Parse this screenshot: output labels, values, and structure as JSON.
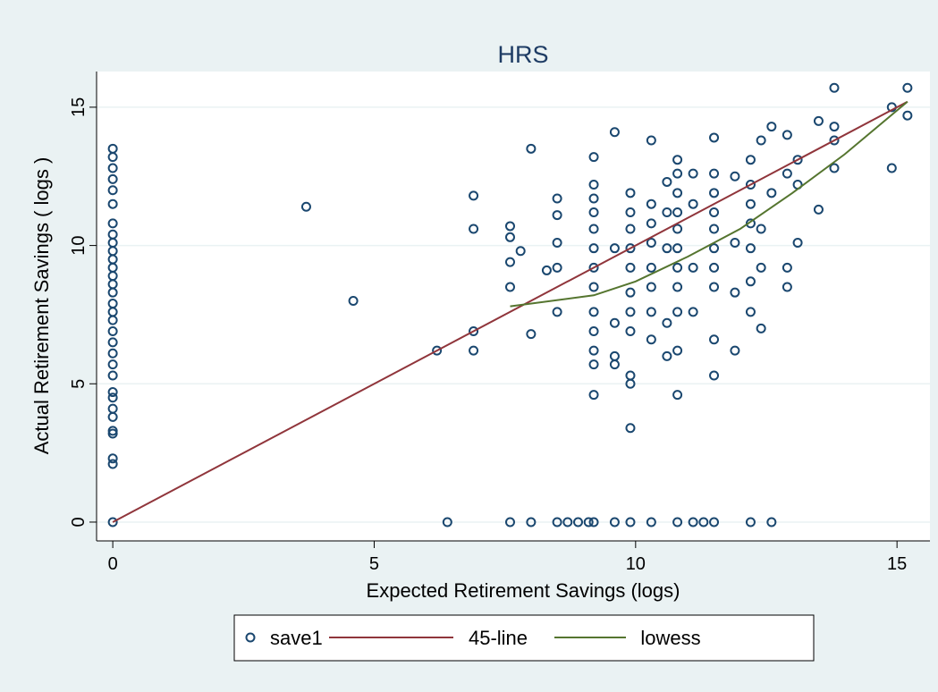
{
  "chart_data": {
    "type": "scatter",
    "title": "HRS",
    "x_label": "Expected Retirement Savings (logs)",
    "y_label": "Actual Retirement Savings ( logs )",
    "xlim": [
      -0.31,
      15.63
    ],
    "ylim": [
      -0.68,
      16.29
    ],
    "xticks": [
      0,
      5,
      10,
      15
    ],
    "yticks": [
      0,
      5,
      10,
      15
    ],
    "grid": true,
    "legend": "bottom",
    "series": [
      {
        "name": "save1",
        "mode": "markers",
        "color": "#1a476f",
        "x": [
          0,
          0,
          0,
          0,
          0,
          0,
          0,
          0,
          0,
          0,
          0,
          0,
          0,
          0,
          0,
          0,
          0,
          0,
          0,
          0,
          0,
          0,
          0,
          0,
          0,
          0,
          0,
          0,
          0,
          0,
          0,
          0,
          3.7,
          4.6,
          6.2,
          6.4,
          6.9,
          6.9,
          6.9,
          6.9,
          7.6,
          7.6,
          7.6,
          7.6,
          7.6,
          7.8,
          8,
          8,
          8,
          8.3,
          8.5,
          8.5,
          8.5,
          8.5,
          8.5,
          8.5,
          8.7,
          8.9,
          9.1,
          9.2,
          9.2,
          9.2,
          9.2,
          9.2,
          9.2,
          9.2,
          9.2,
          9.2,
          9.2,
          9.2,
          9.2,
          9.2,
          9.2,
          9.6,
          9.6,
          9.6,
          9.6,
          9.6,
          9.6,
          9.9,
          9.9,
          9.9,
          9.9,
          9.9,
          9.9,
          9.9,
          9.9,
          9.9,
          9.9,
          9.9,
          9.9,
          10.3,
          10.3,
          10.3,
          10.3,
          10.3,
          10.3,
          10.3,
          10.3,
          10.3,
          10.6,
          10.6,
          10.6,
          10.6,
          10.6,
          10.8,
          10.8,
          10.8,
          10.8,
          10.8,
          10.8,
          10.8,
          10.8,
          10.8,
          10.8,
          10.8,
          10.8,
          11.1,
          11.1,
          11.1,
          11.1,
          11.1,
          11.3,
          11.5,
          11.5,
          11.5,
          11.5,
          11.5,
          11.5,
          11.5,
          11.5,
          11.5,
          11.5,
          11.5,
          11.9,
          11.9,
          11.9,
          11.9,
          12.2,
          12.2,
          12.2,
          12.2,
          12.2,
          12.2,
          12.2,
          12.2,
          12.4,
          12.4,
          12.4,
          12.4,
          12.6,
          12.6,
          12.6,
          12.9,
          12.9,
          12.9,
          12.9,
          13.1,
          13.1,
          13.1,
          13.5,
          13.5,
          13.8,
          13.8,
          13.8,
          13.8,
          14.9,
          14.9,
          15.2,
          15.2
        ],
        "values": [
          0,
          2.1,
          2.3,
          3.2,
          3.3,
          3.8,
          4.1,
          4.5,
          4.7,
          5.3,
          5.7,
          6.1,
          6.5,
          6.9,
          7.3,
          7.6,
          7.9,
          8.3,
          8.6,
          8.9,
          9.2,
          9.5,
          9.8,
          10.1,
          10.4,
          10.8,
          11.5,
          12,
          12.4,
          12.8,
          13.2,
          13.5,
          11.4,
          8,
          6.2,
          0,
          6.2,
          6.9,
          10.6,
          11.8,
          0,
          8.5,
          9.4,
          10.3,
          10.7,
          9.8,
          0,
          6.8,
          13.5,
          9.1,
          7.6,
          9.2,
          10.1,
          11.1,
          11.7,
          0,
          0,
          0,
          0,
          0,
          4.6,
          5.7,
          6.2,
          6.9,
          7.6,
          8.5,
          9.2,
          9.9,
          10.6,
          11.2,
          11.7,
          12.2,
          13.2,
          5.7,
          6,
          7.2,
          9.9,
          14.1,
          0,
          0,
          3.4,
          5.0,
          5.3,
          6.9,
          7.6,
          8.3,
          9.2,
          9.9,
          10.6,
          11.2,
          11.9,
          0,
          6.6,
          7.6,
          8.5,
          9.2,
          10.1,
          10.8,
          11.5,
          13.8,
          6,
          7.2,
          9.9,
          11.2,
          12.3,
          0,
          4.6,
          6.2,
          7.6,
          8.5,
          9.2,
          9.9,
          10.6,
          11.2,
          11.9,
          12.6,
          13.1,
          0,
          7.6,
          9.2,
          11.5,
          12.6,
          0,
          0,
          5.3,
          6.6,
          8.5,
          9.2,
          9.9,
          10.6,
          11.2,
          11.9,
          12.6,
          13.9,
          6.2,
          8.3,
          10.1,
          12.5,
          0,
          7.6,
          8.7,
          9.9,
          10.8,
          11.5,
          12.2,
          13.1,
          7,
          9.2,
          10.6,
          13.8,
          0,
          11.9,
          14.3,
          8.5,
          9.2,
          12.6,
          14,
          10.1,
          12.2,
          13.1,
          11.3,
          14.5,
          12.8,
          13.8,
          14.3,
          15.7,
          12.8,
          15,
          14.7,
          15.7
        ]
      },
      {
        "name": "45-line",
        "mode": "lines",
        "color": "#90353b",
        "x": [
          0,
          15.2
        ],
        "values": [
          0,
          15.2
        ]
      },
      {
        "name": "lowess",
        "mode": "lines",
        "color": "#55752f",
        "x": [
          7.6,
          9.2,
          10,
          11,
          12,
          13,
          14,
          15.2
        ],
        "values": [
          7.8,
          8.2,
          8.7,
          9.6,
          10.6,
          11.9,
          13.3,
          15.2
        ]
      }
    ]
  }
}
